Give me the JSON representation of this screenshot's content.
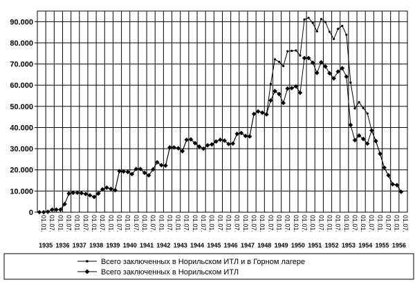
{
  "chart_data": {
    "type": "line",
    "y_ticks": [
      "0",
      "10.000",
      "20.000",
      "30.000",
      "40.000",
      "50.000",
      "60.000",
      "70.000",
      "80.000",
      "90.000"
    ],
    "ylim": [
      0,
      95000
    ],
    "x_tick_labels": [
      "01.01.",
      "01.07."
    ],
    "years": [
      "1935",
      "1936",
      "1937",
      "1938",
      "1939",
      "1940",
      "1941",
      "1942",
      "1943",
      "1944",
      "1945",
      "1946",
      "1947",
      "1948",
      "1949",
      "1950",
      "1951",
      "1952",
      "1953",
      "1954",
      "1955",
      "1956"
    ],
    "grid": true,
    "legend_position": "bottom",
    "series": [
      {
        "name": "Всего заключенных в Норильском ИТЛ и в Горном лагере",
        "marker": "small-dot",
        "points": [
          [
            0,
            0
          ],
          [
            1,
            0
          ],
          [
            2,
            200
          ],
          [
            3,
            1200
          ],
          [
            4,
            1200
          ],
          [
            5,
            1200
          ],
          [
            6,
            3800
          ],
          [
            7,
            8800
          ],
          [
            8,
            9200
          ],
          [
            9,
            9200
          ],
          [
            10,
            9000
          ],
          [
            11,
            8600
          ],
          [
            12,
            8000
          ],
          [
            13,
            7200
          ],
          [
            14,
            8800
          ],
          [
            15,
            10800
          ],
          [
            16,
            11600
          ],
          [
            17,
            11000
          ],
          [
            18,
            10400
          ],
          [
            19,
            19400
          ],
          [
            20,
            19200
          ],
          [
            21,
            19000
          ],
          [
            22,
            18000
          ],
          [
            23,
            20400
          ],
          [
            24,
            20400
          ],
          [
            25,
            18600
          ],
          [
            26,
            17400
          ],
          [
            27,
            20200
          ],
          [
            28,
            23600
          ],
          [
            29,
            22200
          ],
          [
            30,
            22000
          ],
          [
            31,
            30600
          ],
          [
            32,
            30600
          ],
          [
            33,
            30200
          ],
          [
            34,
            28800
          ],
          [
            35,
            34200
          ],
          [
            36,
            34400
          ],
          [
            37,
            32600
          ],
          [
            38,
            31000
          ],
          [
            39,
            30000
          ],
          [
            40,
            31600
          ],
          [
            41,
            32000
          ],
          [
            42,
            33400
          ],
          [
            43,
            34200
          ],
          [
            44,
            33800
          ],
          [
            45,
            32200
          ],
          [
            46,
            32400
          ],
          [
            47,
            37000
          ],
          [
            48,
            37400
          ],
          [
            49,
            36000
          ],
          [
            50,
            35800
          ],
          [
            51,
            46400
          ],
          [
            52,
            47600
          ],
          [
            53,
            47000
          ],
          [
            54,
            46200
          ],
          [
            55,
            60600
          ],
          [
            56,
            72200
          ],
          [
            57,
            71000
          ],
          [
            58,
            69000
          ],
          [
            59,
            76000
          ],
          [
            60,
            76200
          ],
          [
            61,
            76400
          ],
          [
            62,
            74000
          ],
          [
            63,
            91000
          ],
          [
            64,
            91800
          ],
          [
            65,
            89400
          ],
          [
            66,
            85400
          ],
          [
            67,
            91200
          ],
          [
            68,
            89800
          ],
          [
            69,
            85200
          ],
          [
            70,
            81800
          ],
          [
            71,
            86600
          ],
          [
            72,
            88000
          ],
          [
            73,
            83800
          ],
          [
            74,
            61200
          ],
          [
            75,
            49000
          ],
          [
            76,
            52000
          ],
          [
            77,
            49200
          ],
          [
            78,
            46600
          ],
          [
            79,
            38600
          ],
          [
            80,
            33600
          ],
          [
            81,
            27600
          ],
          [
            82,
            21000
          ],
          [
            83,
            17400
          ],
          [
            84,
            13200
          ],
          [
            85,
            12800
          ],
          [
            86,
            9600
          ]
        ]
      },
      {
        "name": "Всего заключенных в Норильском ИТЛ",
        "marker": "diamond",
        "points": [
          [
            0,
            0
          ],
          [
            1,
            0
          ],
          [
            2,
            200
          ],
          [
            3,
            1200
          ],
          [
            4,
            1200
          ],
          [
            5,
            1200
          ],
          [
            6,
            3800
          ],
          [
            7,
            8800
          ],
          [
            8,
            9200
          ],
          [
            9,
            9200
          ],
          [
            10,
            9000
          ],
          [
            11,
            8600
          ],
          [
            12,
            8000
          ],
          [
            13,
            7200
          ],
          [
            14,
            8800
          ],
          [
            15,
            10800
          ],
          [
            16,
            11600
          ],
          [
            17,
            11000
          ],
          [
            18,
            10400
          ],
          [
            19,
            19400
          ],
          [
            20,
            19200
          ],
          [
            21,
            19000
          ],
          [
            22,
            18000
          ],
          [
            23,
            20400
          ],
          [
            24,
            20400
          ],
          [
            25,
            18600
          ],
          [
            26,
            17400
          ],
          [
            27,
            20200
          ],
          [
            28,
            23600
          ],
          [
            29,
            22200
          ],
          [
            30,
            22000
          ],
          [
            31,
            30600
          ],
          [
            32,
            30600
          ],
          [
            33,
            30200
          ],
          [
            34,
            28800
          ],
          [
            35,
            34200
          ],
          [
            36,
            34400
          ],
          [
            37,
            32600
          ],
          [
            38,
            31000
          ],
          [
            39,
            30000
          ],
          [
            40,
            31600
          ],
          [
            41,
            32000
          ],
          [
            42,
            33400
          ],
          [
            43,
            34200
          ],
          [
            44,
            33800
          ],
          [
            45,
            32200
          ],
          [
            46,
            32400
          ],
          [
            47,
            37000
          ],
          [
            48,
            37400
          ],
          [
            49,
            36000
          ],
          [
            50,
            35800
          ],
          [
            51,
            46400
          ],
          [
            52,
            47600
          ],
          [
            53,
            47000
          ],
          [
            54,
            46200
          ],
          [
            55,
            52800
          ],
          [
            56,
            57200
          ],
          [
            57,
            55800
          ],
          [
            58,
            51600
          ],
          [
            59,
            58400
          ],
          [
            60,
            58600
          ],
          [
            61,
            59400
          ],
          [
            62,
            56400
          ],
          [
            63,
            72800
          ],
          [
            64,
            72800
          ],
          [
            65,
            70600
          ],
          [
            66,
            65800
          ],
          [
            67,
            70800
          ],
          [
            68,
            68800
          ],
          [
            69,
            65600
          ],
          [
            70,
            63200
          ],
          [
            71,
            66400
          ],
          [
            72,
            68000
          ],
          [
            73,
            64000
          ],
          [
            74,
            41200
          ],
          [
            75,
            34000
          ],
          [
            76,
            36200
          ],
          [
            77,
            34600
          ],
          [
            78,
            32400
          ],
          [
            79,
            38600
          ],
          [
            80,
            33600
          ],
          [
            81,
            27600
          ],
          [
            82,
            21000
          ],
          [
            83,
            17400
          ],
          [
            84,
            13200
          ],
          [
            85,
            12800
          ],
          [
            86,
            9600
          ]
        ]
      }
    ]
  }
}
